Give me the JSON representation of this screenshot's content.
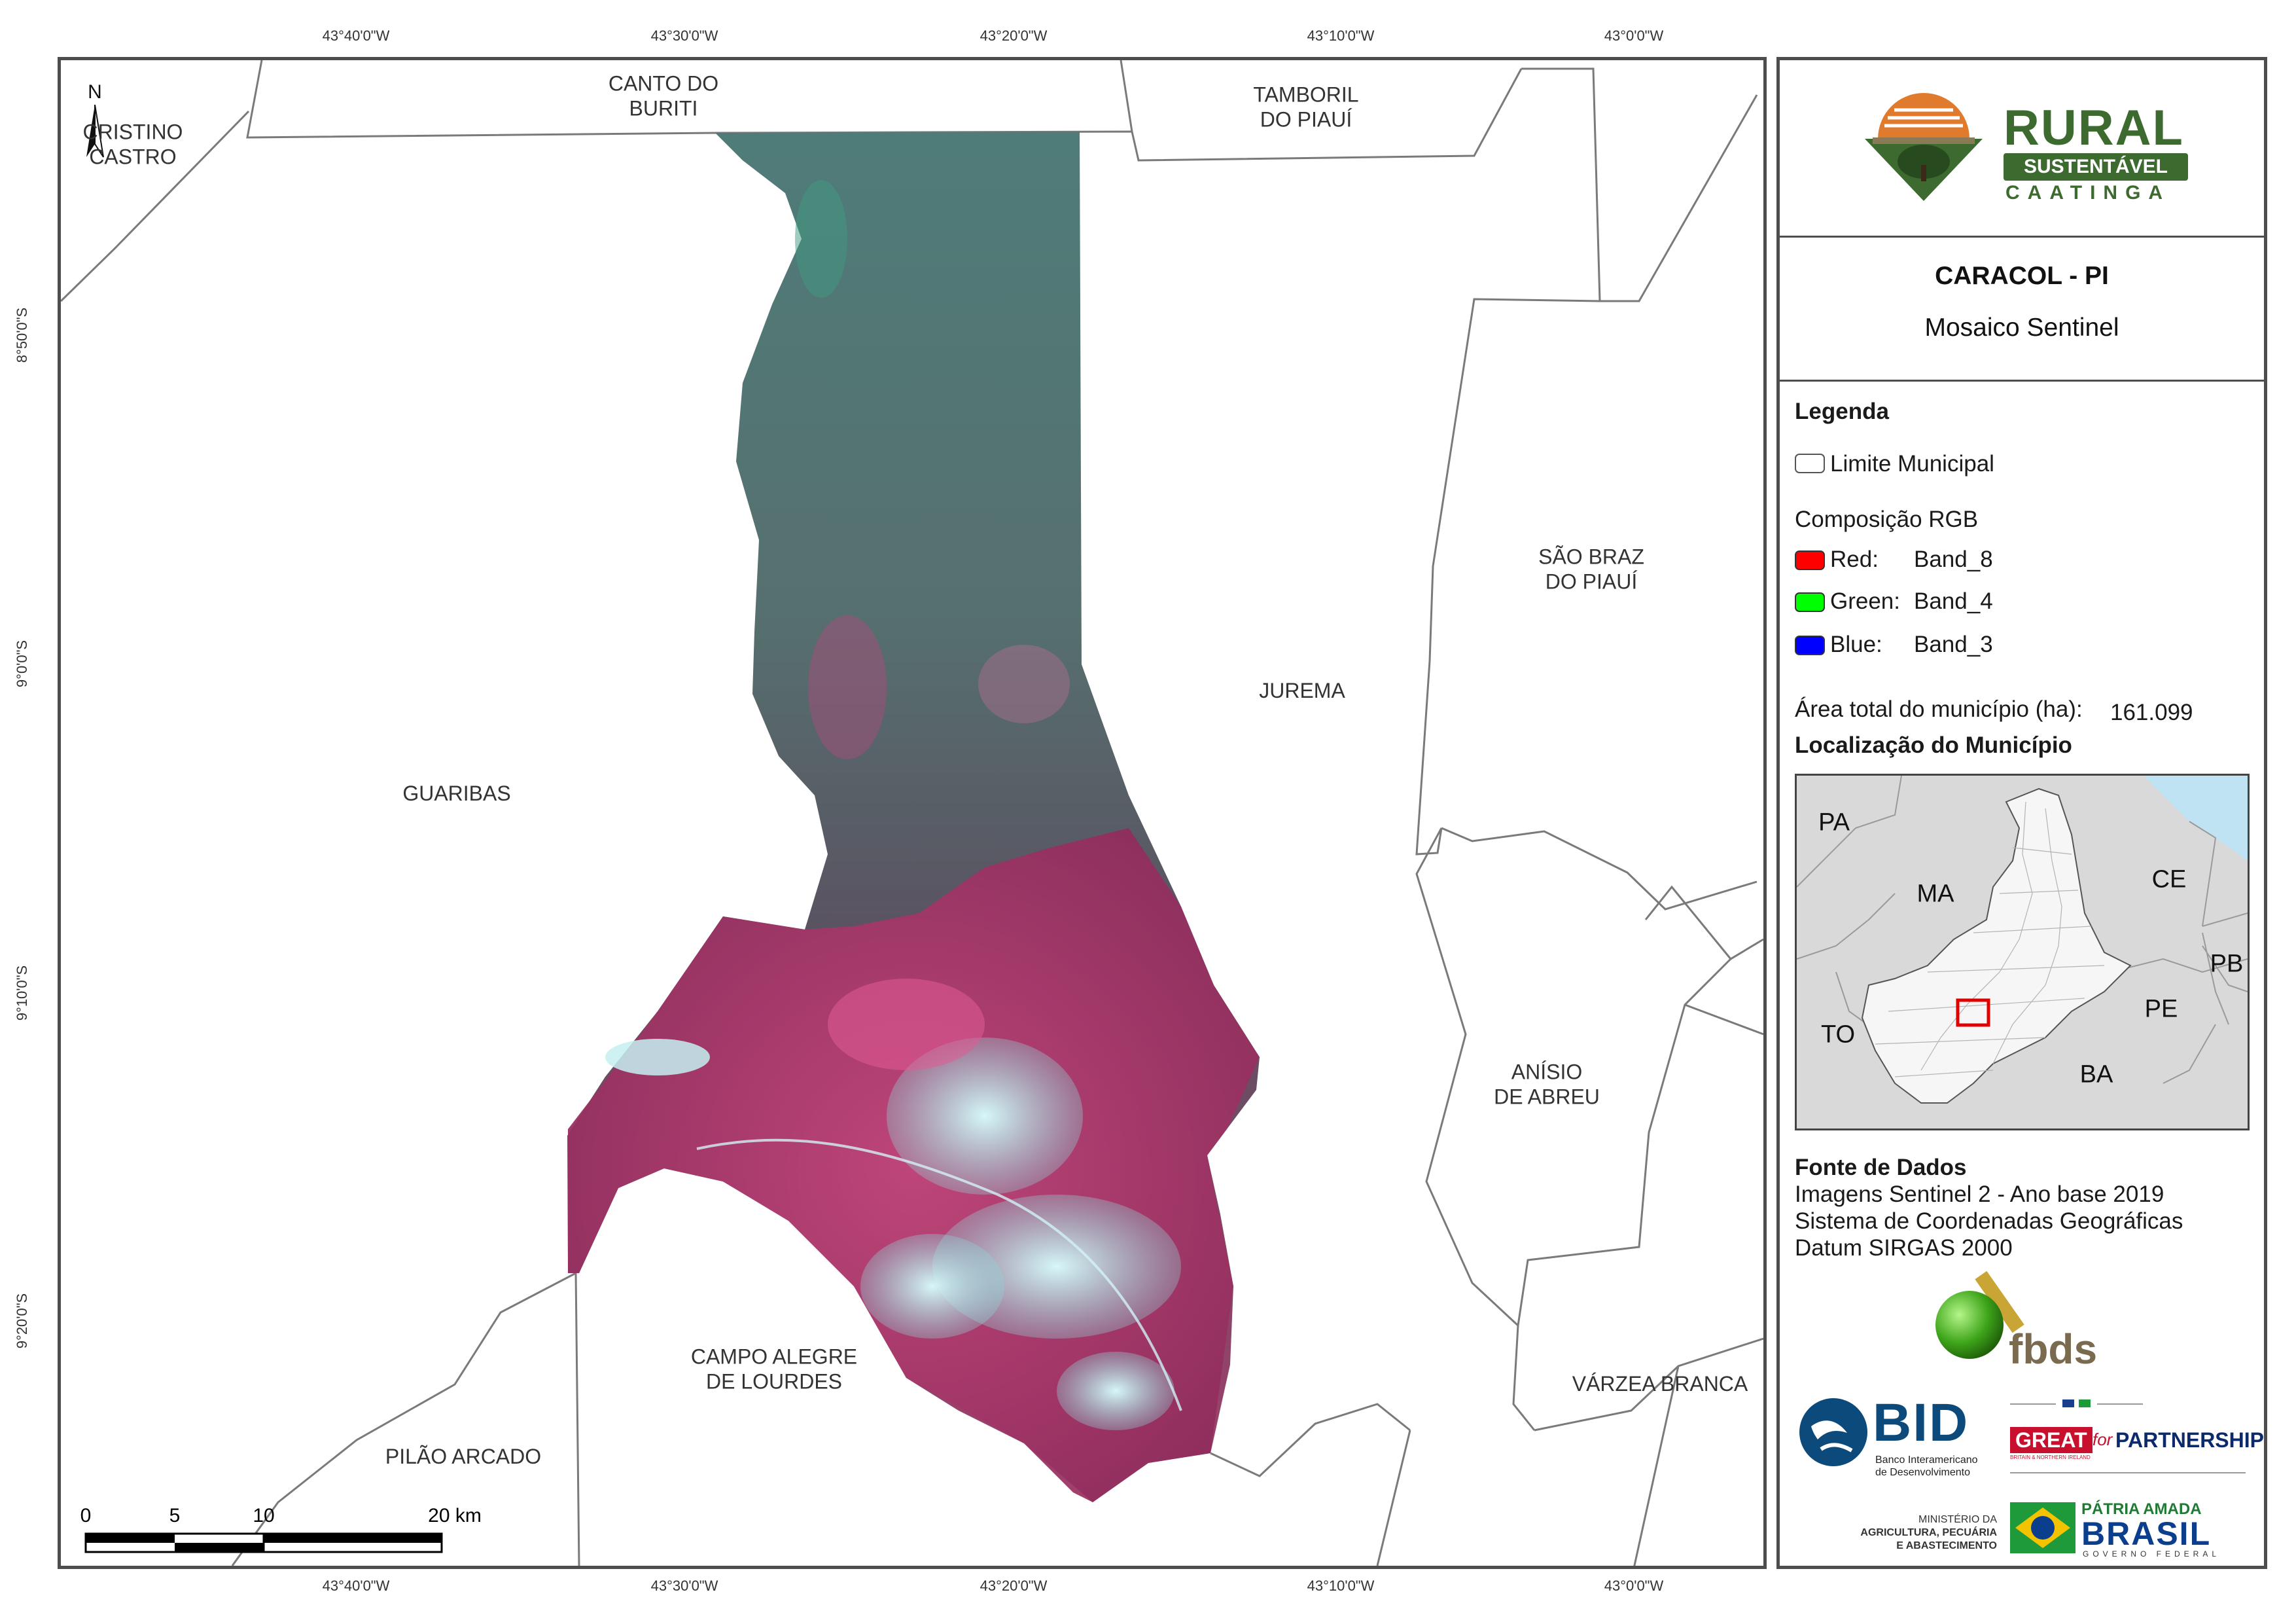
{
  "map": {
    "top_lon_ticks": [
      "43°40'0\"W",
      "43°30'0\"W",
      "43°20'0\"W",
      "43°10'0\"W",
      "43°0'0\"W"
    ],
    "bottom_lon_ticks": [
      "43°40'0\"W",
      "43°30'0\"W",
      "43°20'0\"W",
      "43°10'0\"W",
      "43°0'0\"W"
    ],
    "lat_ticks": [
      "8°50'0\"S",
      "9°0'0\"S",
      "9°10'0\"S",
      "9°20'0\"S"
    ],
    "north_label": "N",
    "municipalities": {
      "cristino_castro": "CRISTINO\nCASTRO",
      "canto_do_buriti": "CANTO DO\nBURITI",
      "tamboril_do_piaui": "TAMBORIL\nDO PIAUÍ",
      "guaribas": "GUARIBAS",
      "jurema": "JUREMA",
      "sao_braz": "SÃO BRAZ\nDO PIAUÍ",
      "anisio_de_abreu": "ANÍSIO\nDE ABREU",
      "campo_alegre": "CAMPO ALEGRE\nDE LOURDES",
      "pilao_arcado": "PILÃO ARCADO",
      "varzea_branca": "VÁRZEA BRANCA"
    },
    "scale_bar": {
      "labels": [
        "0",
        "5",
        "10",
        "20 km"
      ]
    }
  },
  "colors": {
    "frame": "#4d4d4d",
    "imagery_dark": "#4f4a5a",
    "imagery_teal": "#4d7a78",
    "imagery_magenta": "#b03a6e",
    "imagery_cyan": "#9fe6ea",
    "brand_green": "#3d6b2f",
    "brand_orange": "#e07b2d",
    "bid_blue": "#0b4a7a",
    "great_red": "#c8102e",
    "ocean": "#bfe3f2",
    "state_fill": "#d9d9d9",
    "highlight": "#e00000"
  },
  "panel": {
    "logo": {
      "line1": "RURAL",
      "line2": "SUSTENTÁVEL",
      "line3": "CAATINGA"
    },
    "title": "CARACOL - PI",
    "subtitle": "Mosaico Sentinel",
    "legend_title": "Legenda",
    "limit_label": "Limite Municipal",
    "rgb_title": "Composição RGB",
    "bands": [
      {
        "channel": "Red:",
        "band": "Band_8",
        "color": "#ff0000"
      },
      {
        "channel": "Green:",
        "band": "Band_4",
        "color": "#00ff00"
      },
      {
        "channel": "Blue:",
        "band": "Band_3",
        "color": "#0000ff"
      }
    ],
    "area_label": "Área total do município (ha):",
    "area_value": "161.099",
    "location_title": "Localização do Município",
    "location_states": [
      "PA",
      "MA",
      "CE",
      "PB",
      "PE",
      "TO",
      "BA"
    ],
    "source_title": "Fonte de Dados",
    "source_lines": [
      "Imagens Sentinel 2 - Ano base 2019",
      "Sistema de Coordenadas Geográficas",
      "Datum SIRGAS 2000"
    ],
    "fbds": "fbds",
    "bid": {
      "acronym": "BID",
      "line1": "Banco Interamericano",
      "line2": "de Desenvolvimento"
    },
    "great": {
      "great": "GREAT",
      "for": "for",
      "partnership": "PARTNERSHIP",
      "sub": "BRITAIN & NORTHERN IRELAND"
    },
    "ministry": {
      "line1": "MINISTÉRIO DA",
      "line2": "AGRICULTURA, PECUÁRIA",
      "line3": "E ABASTECIMENTO"
    },
    "brasil": {
      "patria": "PÁTRIA AMADA",
      "brasil": "BRASIL",
      "gov": "GOVERNO FEDERAL"
    }
  }
}
